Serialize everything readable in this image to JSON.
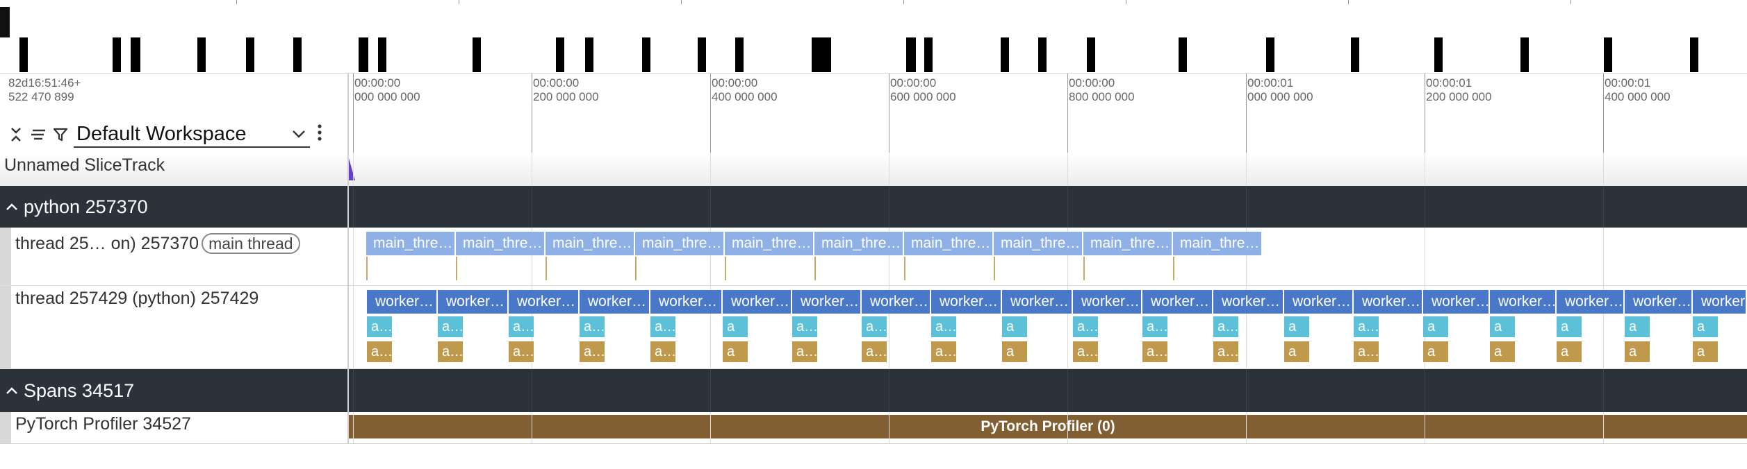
{
  "workspace": {
    "name": "Default Workspace"
  },
  "timeline": {
    "origin_line1": "82d16:51:46+",
    "origin_line2": "522 470 899",
    "ticks": [
      {
        "line1": "00:00:00",
        "line2": "000 000 000"
      },
      {
        "line1": "00:00:00",
        "line2": "200 000 000"
      },
      {
        "line1": "00:00:00",
        "line2": "400 000 000"
      },
      {
        "line1": "00:00:00",
        "line2": "600 000 000"
      },
      {
        "line1": "00:00:00",
        "line2": "800 000 000"
      },
      {
        "line1": "00:00:01",
        "line2": "000 000 000"
      },
      {
        "line1": "00:00:01",
        "line2": "200 000 000"
      },
      {
        "line1": "00:00:01",
        "line2": "400 000 000"
      }
    ]
  },
  "tracks": {
    "unnamed": {
      "title": "Unnamed SliceTrack"
    },
    "python_group": {
      "title": "python 257370"
    },
    "main_thread": {
      "title": "thread 25… on) 257370",
      "badge": "main thread",
      "slices": [
        "main_thre…",
        "main_thre…",
        "main_thre…",
        "main_thre…",
        "main_thre…",
        "main_thre…",
        "main_thre…",
        "main_thre…",
        "main_thre…",
        "main_thre…"
      ]
    },
    "worker_thread": {
      "title": "thread 257429 (python) 257429",
      "slices": [
        "worker…",
        "worker…",
        "worker…",
        "worker…",
        "worker…",
        "worker…",
        "worker…",
        "worker…",
        "worker…",
        "worker…",
        "worker…",
        "worker…",
        "worker…",
        "worker…",
        "worker…",
        "worker…",
        "worker…",
        "worker…",
        "worker…",
        "worker…"
      ],
      "sub1": [
        "a…",
        "a…",
        "a…",
        "a…",
        "a…",
        "a",
        "a…",
        "a…",
        "a…",
        "a",
        "a…",
        "a…",
        "a…",
        "a",
        "a…",
        "a",
        "a",
        "a",
        "a",
        "a"
      ],
      "sub2": [
        "a…",
        "a…",
        "a…",
        "a…",
        "a…",
        "a",
        "a…",
        "a…",
        "a…",
        "a",
        "a…",
        "a…",
        "a…",
        "a",
        "a…",
        "a",
        "a",
        "a",
        "a",
        "a"
      ]
    },
    "spans_group": {
      "title": "Spans 34517"
    },
    "pytorch": {
      "title": "PyTorch Profiler 34527",
      "slice": "PyTorch Profiler (0)"
    }
  },
  "icons": {
    "collapse": "collapse-all-icon",
    "sort": "sort-lines-icon",
    "filter": "filter-icon",
    "chevron": "chevron-down-icon",
    "more": "more-vert-icon",
    "expand": "chevron-up-icon"
  }
}
